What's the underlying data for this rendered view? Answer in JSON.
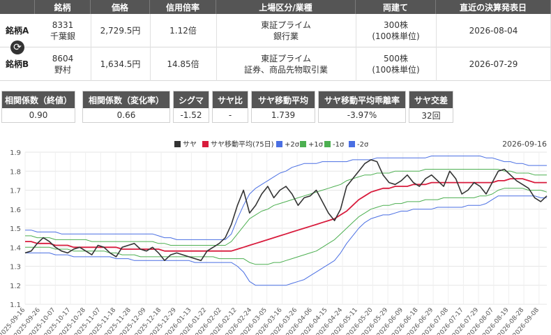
{
  "pair_table": {
    "headers": [
      "",
      "銘柄",
      "価格",
      "信用倍率",
      "上場区分/業種",
      "両建て",
      "直近の決算発表日"
    ],
    "rows": [
      {
        "label": "銘柄A",
        "code": "8331",
        "name": "千葉銀",
        "price": "2,729.5円",
        "margin_ratio": "1.12倍",
        "market": "東証プライム",
        "sector": "銀行業",
        "hedge": "300株",
        "hedge_unit": "(100株単位)",
        "earnings_date": "2026-08-04"
      },
      {
        "label": "銘柄B",
        "code": "8604",
        "name": "野村",
        "price": "1,634.5円",
        "margin_ratio": "14.85倍",
        "market": "東証プライム",
        "sector": "証券、商品先物取引業",
        "hedge": "500株",
        "hedge_unit": "(100株単位)",
        "earnings_date": "2026-07-29"
      }
    ],
    "swap_icon": "swap-icon"
  },
  "stats": [
    {
      "label": "相関係数（終値）",
      "value": "0.90"
    },
    {
      "label": "相関係数（変化率）",
      "value": "0.66"
    },
    {
      "label": "シグマ",
      "value": "-1.52"
    },
    {
      "label": "サヤ比",
      "value": "-"
    },
    {
      "label": "サヤ移動平均",
      "value": "1.739"
    },
    {
      "label": "サヤ移動平均乖離率",
      "value": "-3.97%"
    },
    {
      "label": "サヤ交差",
      "value": "32回"
    }
  ],
  "colors": {
    "header_bg": "#555555",
    "spread": "#333333",
    "ma": "#d81b3c",
    "sigma2": "#4a6fe3",
    "sigma1": "#4caf50"
  },
  "chart_data": {
    "type": "line",
    "date_label": "2026-09-16",
    "ylim": [
      1.1,
      1.9
    ],
    "yticks": [
      "1.1",
      "1.2",
      "1.3",
      "1.4",
      "1.5",
      "1.6",
      "1.7",
      "1.8",
      "1.9"
    ],
    "x_tick_labels": [
      "2025-09-16",
      "2025-09-26",
      "2025-10-07",
      "2025-10-17",
      "2025-10-28",
      "2025-11-07",
      "2025-11-18",
      "2025-11-28",
      "2025-12-09",
      "2025-12-18",
      "2025-12-29",
      "2026-01-13",
      "2026-01-22",
      "2026-02-02",
      "2026-02-12",
      "2026-02-24",
      "2026-03-05",
      "2026-03-16",
      "2026-03-26",
      "2026-04-06",
      "2026-04-15",
      "2026-04-24",
      "2026-05-11",
      "2026-05-20",
      "2026-05-29",
      "2026-06-09",
      "2026-06-18",
      "2026-06-29",
      "2026-07-08",
      "2026-07-17",
      "2026-07-29",
      "2026-08-07",
      "2026-08-19",
      "2026-08-28",
      "2026-09-08"
    ],
    "series": [
      {
        "name": "サヤ",
        "color": "#333333",
        "values": [
          1.37,
          1.38,
          1.42,
          1.45,
          1.43,
          1.4,
          1.38,
          1.37,
          1.39,
          1.4,
          1.38,
          1.36,
          1.41,
          1.4,
          1.37,
          1.35,
          1.4,
          1.41,
          1.42,
          1.39,
          1.38,
          1.4,
          1.37,
          1.33,
          1.36,
          1.37,
          1.36,
          1.35,
          1.34,
          1.33,
          1.38,
          1.4,
          1.42,
          1.45,
          1.52,
          1.62,
          1.7,
          1.58,
          1.62,
          1.68,
          1.72,
          1.66,
          1.7,
          1.72,
          1.68,
          1.62,
          1.66,
          1.67,
          1.7,
          1.64,
          1.58,
          1.54,
          1.6,
          1.72,
          1.76,
          1.8,
          1.84,
          1.86,
          1.85,
          1.78,
          1.74,
          1.73,
          1.75,
          1.78,
          1.74,
          1.72,
          1.76,
          1.78,
          1.75,
          1.72,
          1.8,
          1.76,
          1.68,
          1.7,
          1.74,
          1.72,
          1.68,
          1.74,
          1.8,
          1.81,
          1.78,
          1.75,
          1.73,
          1.71,
          1.66,
          1.64,
          1.67
        ]
      },
      {
        "name": "サヤ移動平均(75日)",
        "color": "#d81b3c",
        "values": [
          1.43,
          1.43,
          1.42,
          1.42,
          1.42,
          1.41,
          1.41,
          1.41,
          1.4,
          1.4,
          1.4,
          1.4,
          1.4,
          1.4,
          1.4,
          1.4,
          1.39,
          1.39,
          1.39,
          1.39,
          1.39,
          1.39,
          1.39,
          1.38,
          1.38,
          1.38,
          1.38,
          1.38,
          1.38,
          1.38,
          1.38,
          1.38,
          1.38,
          1.38,
          1.38,
          1.39,
          1.4,
          1.41,
          1.42,
          1.43,
          1.44,
          1.45,
          1.46,
          1.47,
          1.48,
          1.49,
          1.5,
          1.51,
          1.52,
          1.53,
          1.54,
          1.55,
          1.57,
          1.59,
          1.62,
          1.65,
          1.67,
          1.69,
          1.7,
          1.71,
          1.71,
          1.72,
          1.72,
          1.72,
          1.73,
          1.73,
          1.73,
          1.74,
          1.74,
          1.74,
          1.74,
          1.74,
          1.74,
          1.74,
          1.74,
          1.74,
          1.74,
          1.74,
          1.75,
          1.75,
          1.76,
          1.76,
          1.76,
          1.75,
          1.74,
          1.74,
          1.74
        ]
      },
      {
        "name": "+2σ",
        "color": "#4a6fe3",
        "values": [
          1.49,
          1.49,
          1.48,
          1.48,
          1.48,
          1.48,
          1.47,
          1.47,
          1.47,
          1.47,
          1.47,
          1.47,
          1.47,
          1.47,
          1.47,
          1.47,
          1.47,
          1.47,
          1.47,
          1.47,
          1.47,
          1.47,
          1.46,
          1.45,
          1.45,
          1.44,
          1.44,
          1.44,
          1.44,
          1.44,
          1.44,
          1.44,
          1.44,
          1.44,
          1.47,
          1.55,
          1.62,
          1.68,
          1.71,
          1.73,
          1.75,
          1.77,
          1.79,
          1.8,
          1.82,
          1.83,
          1.84,
          1.84,
          1.84,
          1.85,
          1.85,
          1.85,
          1.85,
          1.85,
          1.86,
          1.86,
          1.86,
          1.86,
          1.87,
          1.87,
          1.87,
          1.87,
          1.87,
          1.87,
          1.87,
          1.87,
          1.87,
          1.88,
          1.88,
          1.88,
          1.88,
          1.88,
          1.88,
          1.88,
          1.88,
          1.88,
          1.87,
          1.87,
          1.86,
          1.85,
          1.85,
          1.84,
          1.84,
          1.83,
          1.83,
          1.83,
          1.83
        ]
      },
      {
        "name": "+1σ",
        "color": "#4caf50",
        "values": [
          1.46,
          1.46,
          1.45,
          1.45,
          1.45,
          1.44,
          1.44,
          1.44,
          1.44,
          1.44,
          1.44,
          1.43,
          1.43,
          1.43,
          1.43,
          1.43,
          1.43,
          1.43,
          1.43,
          1.43,
          1.43,
          1.43,
          1.42,
          1.42,
          1.41,
          1.41,
          1.41,
          1.41,
          1.41,
          1.41,
          1.41,
          1.41,
          1.41,
          1.41,
          1.43,
          1.47,
          1.51,
          1.55,
          1.57,
          1.59,
          1.6,
          1.62,
          1.63,
          1.64,
          1.65,
          1.66,
          1.67,
          1.68,
          1.69,
          1.7,
          1.71,
          1.72,
          1.73,
          1.75,
          1.76,
          1.77,
          1.78,
          1.78,
          1.79,
          1.79,
          1.79,
          1.8,
          1.8,
          1.8,
          1.8,
          1.8,
          1.81,
          1.81,
          1.81,
          1.81,
          1.81,
          1.81,
          1.81,
          1.81,
          1.81,
          1.81,
          1.81,
          1.81,
          1.81,
          1.8,
          1.8,
          1.79,
          1.79,
          1.79,
          1.78,
          1.78,
          1.78
        ]
      },
      {
        "name": "-1σ",
        "color": "#4caf50",
        "values": [
          1.4,
          1.4,
          1.4,
          1.4,
          1.4,
          1.39,
          1.39,
          1.39,
          1.38,
          1.38,
          1.38,
          1.38,
          1.38,
          1.38,
          1.37,
          1.37,
          1.36,
          1.36,
          1.36,
          1.35,
          1.35,
          1.35,
          1.35,
          1.35,
          1.35,
          1.35,
          1.35,
          1.35,
          1.35,
          1.35,
          1.35,
          1.35,
          1.34,
          1.34,
          1.34,
          1.34,
          1.34,
          1.32,
          1.31,
          1.31,
          1.31,
          1.32,
          1.32,
          1.33,
          1.34,
          1.35,
          1.36,
          1.37,
          1.38,
          1.4,
          1.42,
          1.44,
          1.47,
          1.5,
          1.53,
          1.56,
          1.58,
          1.6,
          1.61,
          1.62,
          1.62,
          1.63,
          1.63,
          1.64,
          1.64,
          1.64,
          1.65,
          1.65,
          1.65,
          1.66,
          1.66,
          1.66,
          1.66,
          1.66,
          1.66,
          1.67,
          1.67,
          1.68,
          1.7,
          1.71,
          1.71,
          1.71,
          1.71,
          1.7,
          1.7,
          1.7,
          1.69
        ]
      },
      {
        "name": "-2σ",
        "color": "#4a6fe3",
        "values": [
          1.37,
          1.37,
          1.37,
          1.37,
          1.37,
          1.36,
          1.36,
          1.36,
          1.35,
          1.35,
          1.35,
          1.35,
          1.35,
          1.35,
          1.35,
          1.34,
          1.34,
          1.34,
          1.33,
          1.33,
          1.33,
          1.33,
          1.33,
          1.33,
          1.33,
          1.33,
          1.33,
          1.33,
          1.32,
          1.32,
          1.32,
          1.32,
          1.32,
          1.32,
          1.32,
          1.3,
          1.27,
          1.22,
          1.2,
          1.2,
          1.2,
          1.2,
          1.2,
          1.2,
          1.21,
          1.22,
          1.23,
          1.25,
          1.27,
          1.29,
          1.31,
          1.33,
          1.37,
          1.42,
          1.46,
          1.5,
          1.53,
          1.55,
          1.56,
          1.57,
          1.57,
          1.58,
          1.59,
          1.59,
          1.6,
          1.6,
          1.6,
          1.6,
          1.61,
          1.61,
          1.61,
          1.61,
          1.61,
          1.62,
          1.62,
          1.62,
          1.63,
          1.65,
          1.67,
          1.67,
          1.67,
          1.67,
          1.67,
          1.67,
          1.67,
          1.66,
          1.66
        ]
      }
    ],
    "legend": [
      "サヤ",
      "サヤ移動平均(75日)",
      "+2σ",
      "+1σ",
      "-1σ",
      "-2σ"
    ],
    "grid": true,
    "legend_position": "top-center"
  }
}
